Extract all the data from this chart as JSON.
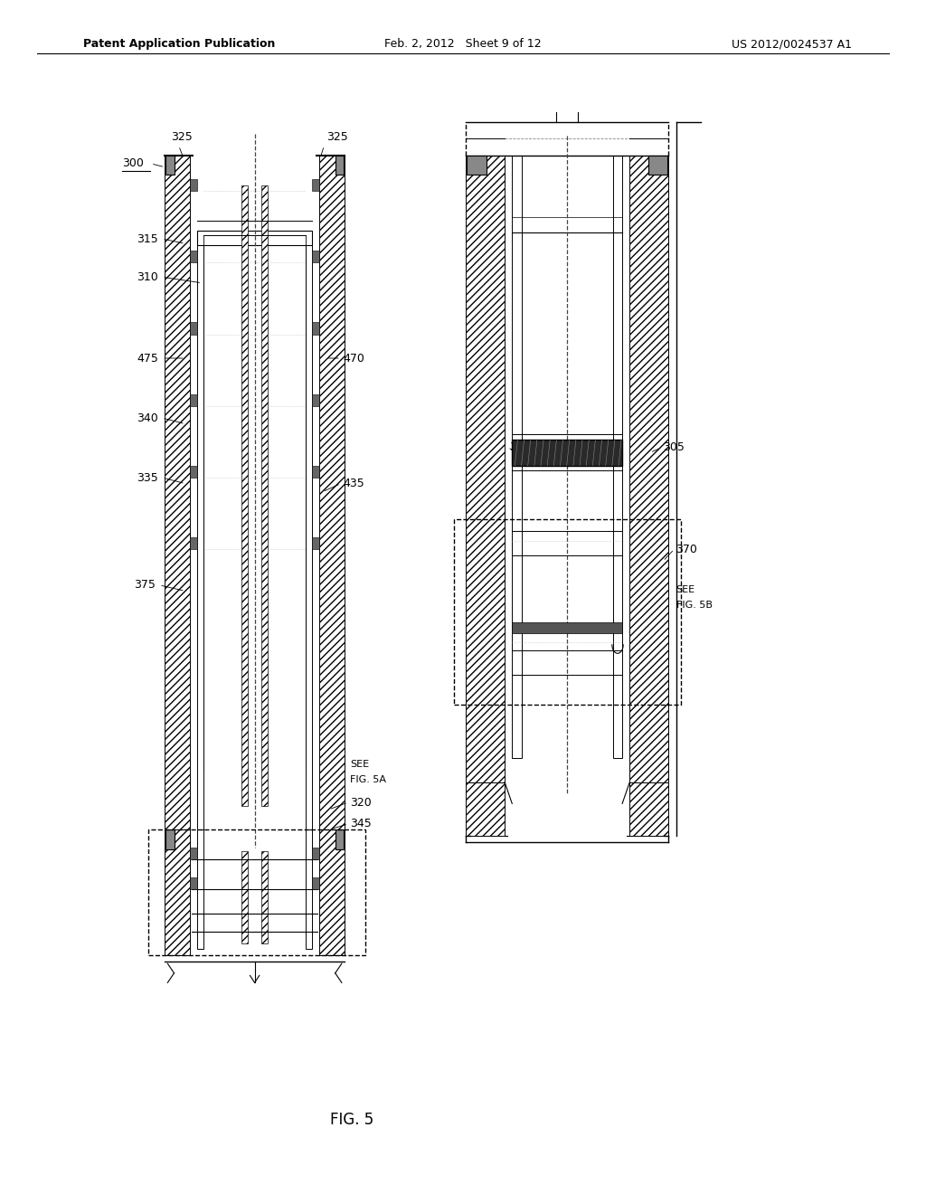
{
  "bg_color": "#ffffff",
  "header_left": "Patent Application Publication",
  "header_mid": "Feb. 2, 2012   Sheet 9 of 12",
  "header_right": "US 2012/0024537 A1",
  "fig_label": "FIG. 5"
}
